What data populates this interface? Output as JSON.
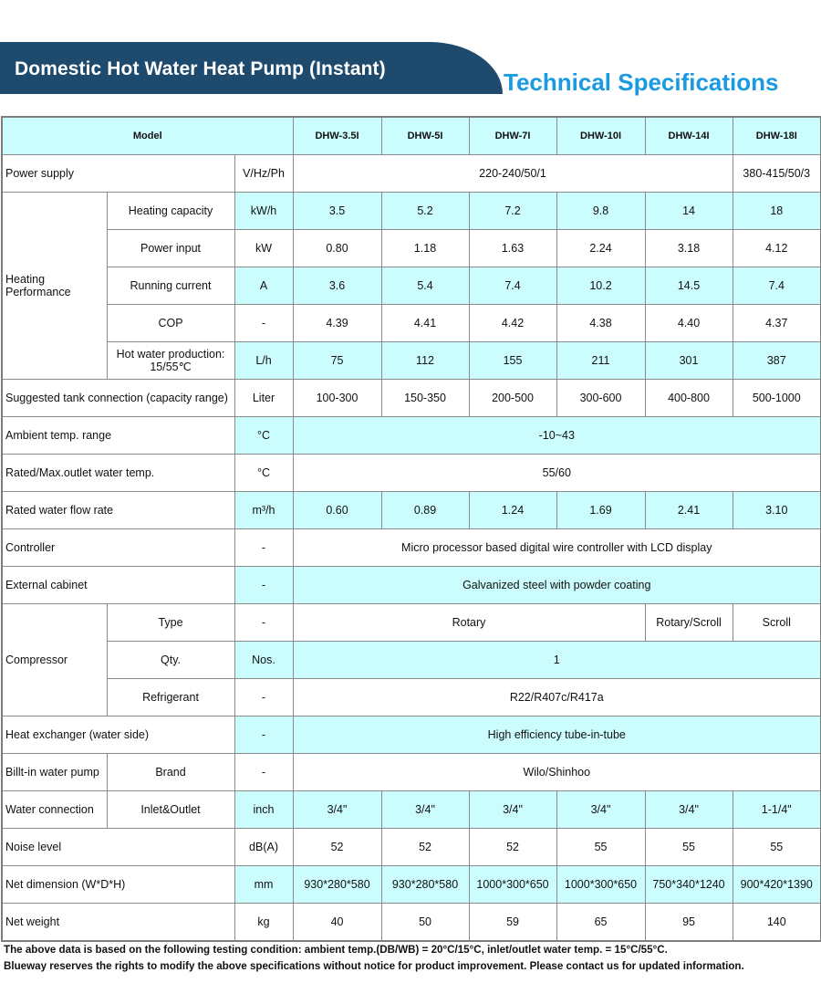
{
  "header": {
    "title": "Domestic Hot Water Heat Pump (Instant)",
    "subtitle": "Technical Specifications",
    "banner_color": "#1e4a6e",
    "subtitle_color": "#1a9ae0",
    "highlight_color": "#ccfdfe"
  },
  "table": {
    "model_label": "Model",
    "models": [
      "DHW-3.5I",
      "DHW-5I",
      "DHW-7I",
      "DHW-10I",
      "DHW-14I",
      "DHW-18I"
    ],
    "sections": [
      {
        "label": "Power supply",
        "rows": [
          {
            "label": "",
            "unit": "V/Hz/Ph",
            "shaded": false,
            "values": [
              {
                "text": "220-240/50/1",
                "span": 5
              },
              {
                "text": "380-415/50/3",
                "span": 1
              }
            ]
          }
        ]
      },
      {
        "label": "Heating Performance",
        "rows": [
          {
            "label": "Heating capacity",
            "unit": "kW/h",
            "shaded": true,
            "values": [
              {
                "text": "3.5"
              },
              {
                "text": "5.2"
              },
              {
                "text": "7.2"
              },
              {
                "text": "9.8"
              },
              {
                "text": "14"
              },
              {
                "text": "18"
              }
            ]
          },
          {
            "label": "Power input",
            "unit": "kW",
            "shaded": false,
            "values": [
              {
                "text": "0.80"
              },
              {
                "text": "1.18"
              },
              {
                "text": "1.63"
              },
              {
                "text": "2.24"
              },
              {
                "text": "3.18"
              },
              {
                "text": "4.12"
              }
            ]
          },
          {
            "label": "Running current",
            "unit": "A",
            "shaded": true,
            "values": [
              {
                "text": "3.6"
              },
              {
                "text": "5.4"
              },
              {
                "text": "7.4"
              },
              {
                "text": "10.2"
              },
              {
                "text": "14.5"
              },
              {
                "text": "7.4"
              }
            ]
          },
          {
            "label": "COP",
            "unit": "-",
            "shaded": false,
            "values": [
              {
                "text": "4.39"
              },
              {
                "text": "4.41"
              },
              {
                "text": "4.42"
              },
              {
                "text": "4.38"
              },
              {
                "text": "4.40"
              },
              {
                "text": "4.37"
              }
            ]
          },
          {
            "label": "Hot water production: 15/55℃",
            "unit": "L/h",
            "shaded": true,
            "values": [
              {
                "text": "75"
              },
              {
                "text": "112"
              },
              {
                "text": "155"
              },
              {
                "text": "211"
              },
              {
                "text": "301"
              },
              {
                "text": "387"
              }
            ]
          }
        ]
      },
      {
        "label": "Suggested tank connection (capacity range)",
        "rows": [
          {
            "label": "",
            "unit": "Liter",
            "shaded": false,
            "values": [
              {
                "text": "100-300"
              },
              {
                "text": "150-350"
              },
              {
                "text": "200-500"
              },
              {
                "text": "300-600"
              },
              {
                "text": "400-800"
              },
              {
                "text": "500-1000"
              }
            ]
          }
        ]
      },
      {
        "label": "Ambient temp. range",
        "rows": [
          {
            "label": "",
            "unit": "°C",
            "shaded": true,
            "values": [
              {
                "text": "-10~43",
                "span": 6
              }
            ]
          }
        ]
      },
      {
        "label": "Rated/Max.outlet water temp.",
        "rows": [
          {
            "label": "",
            "unit": "°C",
            "shaded": false,
            "values": [
              {
                "text": "55/60",
                "span": 6
              }
            ]
          }
        ]
      },
      {
        "label": "Rated water flow rate",
        "rows": [
          {
            "label": "",
            "unit": "m³/h",
            "shaded": true,
            "values": [
              {
                "text": "0.60"
              },
              {
                "text": "0.89"
              },
              {
                "text": "1.24"
              },
              {
                "text": "1.69"
              },
              {
                "text": "2.41"
              },
              {
                "text": "3.10"
              }
            ]
          }
        ]
      },
      {
        "label": "Controller",
        "rows": [
          {
            "label": "",
            "unit": "-",
            "shaded": false,
            "values": [
              {
                "text": "Micro processor based digital wire controller with LCD display",
                "span": 6
              }
            ]
          }
        ]
      },
      {
        "label": "External cabinet",
        "rows": [
          {
            "label": "",
            "unit": "-",
            "shaded": true,
            "values": [
              {
                "text": "Galvanized steel with powder coating",
                "span": 6
              }
            ]
          }
        ]
      },
      {
        "label": "Compressor",
        "rows": [
          {
            "label": "Type",
            "unit": "-",
            "shaded": false,
            "values": [
              {
                "text": "Rotary",
                "span": 4
              },
              {
                "text": "Rotary/Scroll"
              },
              {
                "text": "Scroll"
              }
            ]
          },
          {
            "label": "Qty.",
            "unit": "Nos.",
            "shaded": true,
            "values": [
              {
                "text": "1",
                "span": 6
              }
            ]
          },
          {
            "label": "Refrigerant",
            "unit": "-",
            "shaded": false,
            "values": [
              {
                "text": "R22/R407c/R417a",
                "span": 6
              }
            ]
          }
        ]
      },
      {
        "label": "Heat exchanger (water side)",
        "rows": [
          {
            "label": "",
            "unit": "-",
            "shaded": true,
            "values": [
              {
                "text": "High efficiency tube-in-tube",
                "span": 6
              }
            ]
          }
        ]
      },
      {
        "label": "Billt-in water pump",
        "rows": [
          {
            "label": "Brand",
            "unit": "-",
            "shaded": false,
            "values": [
              {
                "text": "Wilo/Shinhoo",
                "span": 6
              }
            ]
          }
        ]
      },
      {
        "label": "Water connection",
        "rows": [
          {
            "label": "Inlet&Outlet",
            "unit": "inch",
            "shaded": true,
            "values": [
              {
                "text": "3/4\""
              },
              {
                "text": "3/4\""
              },
              {
                "text": "3/4\""
              },
              {
                "text": "3/4\""
              },
              {
                "text": "3/4\""
              },
              {
                "text": "1-1/4\""
              }
            ]
          }
        ]
      },
      {
        "label": "Noise level",
        "rows": [
          {
            "label": "",
            "unit": "dB(A)",
            "shaded": false,
            "values": [
              {
                "text": "52"
              },
              {
                "text": "52"
              },
              {
                "text": "52"
              },
              {
                "text": "55"
              },
              {
                "text": "55"
              },
              {
                "text": "55"
              }
            ]
          }
        ]
      },
      {
        "label": "Net dimension (W*D*H)",
        "rows": [
          {
            "label": "",
            "unit": "mm",
            "shaded": true,
            "values": [
              {
                "text": "930*280*580"
              },
              {
                "text": "930*280*580"
              },
              {
                "text": "1000*300*650"
              },
              {
                "text": "1000*300*650"
              },
              {
                "text": "750*340*1240"
              },
              {
                "text": "900*420*1390"
              }
            ]
          }
        ]
      },
      {
        "label": "Net weight",
        "rows": [
          {
            "label": "",
            "unit": "kg",
            "shaded": false,
            "values": [
              {
                "text": "40"
              },
              {
                "text": "50"
              },
              {
                "text": "59"
              },
              {
                "text": "65"
              },
              {
                "text": "95"
              },
              {
                "text": "140"
              }
            ]
          }
        ]
      }
    ]
  },
  "notes": [
    "The above data is based on the following testing condition: ambient temp.(DB/WB) = 20°C/15°C, inlet/outlet water temp. = 15°C/55°C.",
    "Blueway reserves the rights to modify the above specifications without notice for product improvement. Please contact us for updated information."
  ]
}
